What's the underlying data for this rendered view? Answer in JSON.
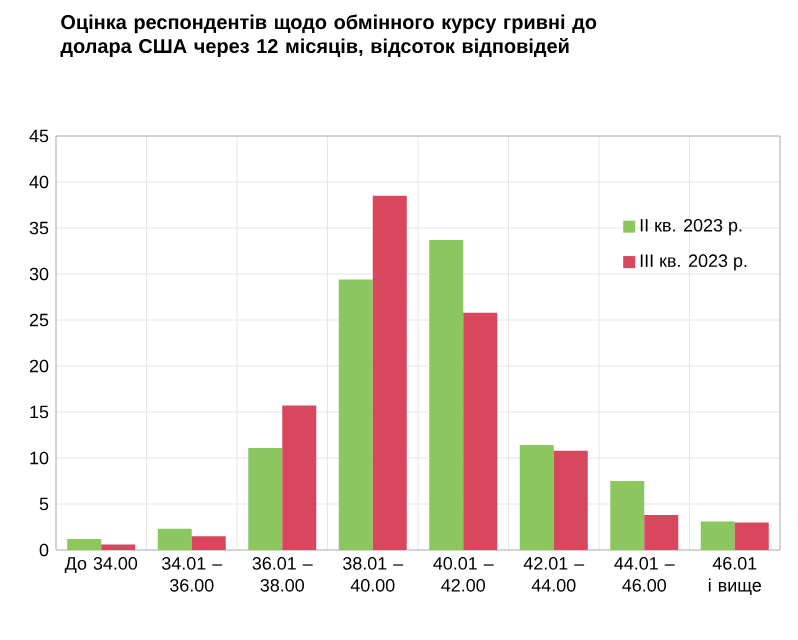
{
  "chart_data": {
    "type": "bar",
    "title": "Оцінка респондентів щодо обмінного курсу гривні до долара США через 12 місяців, відсоток відповідей",
    "categories": [
      "До 34.00",
      "34.01 – 36.00",
      "36.01 – 38.00",
      "38.01 – 40.00",
      "40.01 – 42.00",
      "42.01 – 44.00",
      "44.01 – 46.00",
      "46.01 і вище"
    ],
    "series": [
      {
        "name": "ІІ кв. 2023 р.",
        "color": "#8cc65f",
        "values": [
          1.2,
          2.3,
          11.1,
          29.4,
          33.7,
          11.4,
          7.5,
          3.1
        ]
      },
      {
        "name": "ІІІ кв. 2023 р.",
        "color": "#d9475f",
        "values": [
          0.6,
          1.5,
          15.7,
          38.5,
          25.8,
          10.8,
          3.8,
          3.0
        ]
      }
    ],
    "ylim": [
      0,
      45
    ],
    "yticks": [
      0,
      5,
      10,
      15,
      20,
      25,
      30,
      35,
      40,
      45
    ],
    "grid": true,
    "legend": "top right"
  }
}
